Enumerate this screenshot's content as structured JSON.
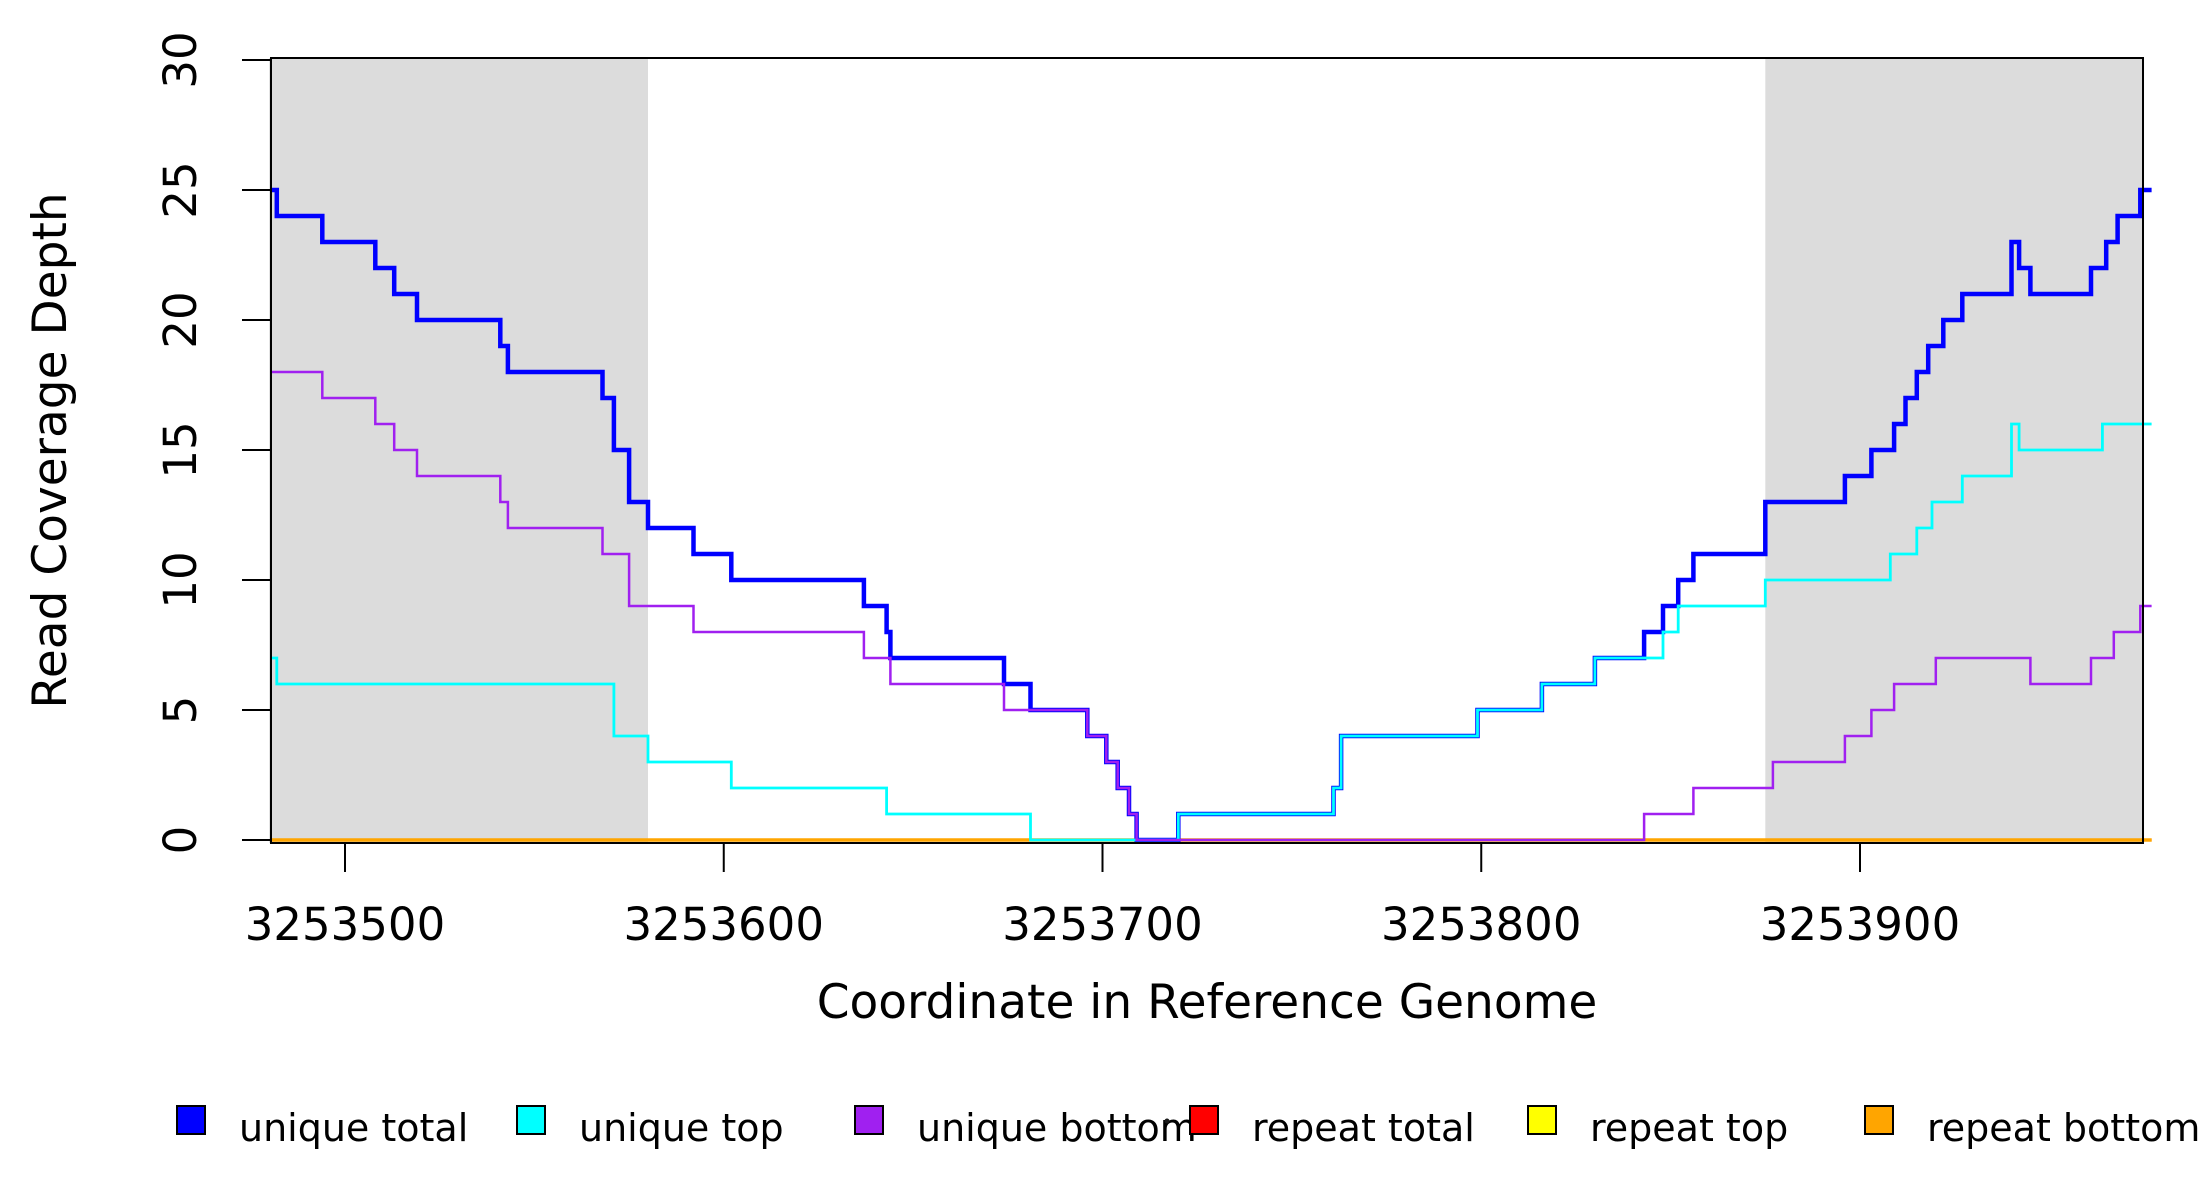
{
  "chart_data": {
    "type": "line",
    "subtype": "step-coverage-plot",
    "title": "",
    "xlabel": "Coordinate in Reference Genome",
    "ylabel": "Read Coverage Depth",
    "xlim": [
      3253480,
      3253977
    ],
    "ylim": [
      0,
      30
    ],
    "x_ticks": [
      3253500,
      3253600,
      3253700,
      3253800,
      3253900
    ],
    "y_ticks": [
      0,
      5,
      10,
      15,
      20,
      25,
      30
    ],
    "grid": "off",
    "background": "#ffffff",
    "shaded_regions": [
      {
        "from": 3253480,
        "to": 3253580,
        "color": "#dcdcdc"
      },
      {
        "from": 3253875,
        "to": 3253975,
        "color": "#dcdcdc"
      }
    ],
    "domain_end": 3253977,
    "draw_order": [
      "repeat total",
      "repeat top",
      "repeat bottom",
      "unique total",
      "unique top",
      "unique bottom"
    ],
    "series": [
      {
        "name": "repeat total",
        "color": "#FF0000",
        "line_width": 3,
        "points": [
          [
            3253480.5,
            0
          ]
        ]
      },
      {
        "name": "repeat top",
        "color": "#FFFF00",
        "line_width": 3,
        "points": [
          [
            3253480.5,
            0
          ]
        ]
      },
      {
        "name": "repeat bottom",
        "color": "#FFA500",
        "line_width": 3.5,
        "points": [
          [
            3253480.5,
            0
          ]
        ]
      },
      {
        "name": "unique total",
        "color": "#0000FF",
        "line_width": 4.5,
        "points": [
          [
            3253480.5,
            25
          ],
          [
            3253482,
            24
          ],
          [
            3253494,
            23
          ],
          [
            3253508,
            22
          ],
          [
            3253513,
            21
          ],
          [
            3253519,
            20
          ],
          [
            3253541,
            19
          ],
          [
            3253543,
            18
          ],
          [
            3253568,
            17
          ],
          [
            3253571,
            15
          ],
          [
            3253575,
            13
          ],
          [
            3253580,
            12
          ],
          [
            3253592,
            11
          ],
          [
            3253602,
            10
          ],
          [
            3253637,
            9
          ],
          [
            3253643,
            8
          ],
          [
            3253644,
            7
          ],
          [
            3253674,
            6
          ],
          [
            3253681,
            5
          ],
          [
            3253696,
            4
          ],
          [
            3253701,
            3
          ],
          [
            3253704,
            2
          ],
          [
            3253707,
            1
          ],
          [
            3253709,
            0
          ],
          [
            3253720,
            1
          ],
          [
            3253761,
            2
          ],
          [
            3253763,
            4
          ],
          [
            3253799,
            5
          ],
          [
            3253816,
            6
          ],
          [
            3253830,
            7
          ],
          [
            3253843,
            8
          ],
          [
            3253848,
            9
          ],
          [
            3253852,
            10
          ],
          [
            3253856,
            11
          ],
          [
            3253875,
            13
          ],
          [
            3253896,
            14
          ],
          [
            3253903,
            15
          ],
          [
            3253909,
            16
          ],
          [
            3253912,
            17
          ],
          [
            3253915,
            18
          ],
          [
            3253918,
            19
          ],
          [
            3253922,
            20
          ],
          [
            3253927,
            21
          ],
          [
            3253940,
            23
          ],
          [
            3253942,
            22
          ],
          [
            3253945,
            21
          ],
          [
            3253961,
            22
          ],
          [
            3253965,
            23
          ],
          [
            3253968,
            24
          ],
          [
            3253974,
            25
          ]
        ]
      },
      {
        "name": "unique top",
        "color": "#00FFFF",
        "line_width": 2.8,
        "points": [
          [
            3253480.5,
            7
          ],
          [
            3253482,
            6
          ],
          [
            3253571,
            4
          ],
          [
            3253580,
            3
          ],
          [
            3253602,
            2
          ],
          [
            3253643,
            1
          ],
          [
            3253681,
            0
          ],
          [
            3253720,
            1
          ],
          [
            3253761,
            2
          ],
          [
            3253763,
            4
          ],
          [
            3253799,
            5
          ],
          [
            3253816,
            6
          ],
          [
            3253830,
            7
          ],
          [
            3253848,
            8
          ],
          [
            3253852,
            9
          ],
          [
            3253875,
            10
          ],
          [
            3253908,
            11
          ],
          [
            3253915,
            12
          ],
          [
            3253919,
            13
          ],
          [
            3253927,
            14
          ],
          [
            3253940,
            16
          ],
          [
            3253942,
            15
          ],
          [
            3253964,
            16
          ]
        ]
      },
      {
        "name": "unique bottom",
        "color": "#A020F0",
        "line_width": 2.5,
        "points": [
          [
            3253480.5,
            18
          ],
          [
            3253494,
            17
          ],
          [
            3253508,
            16
          ],
          [
            3253513,
            15
          ],
          [
            3253519,
            14
          ],
          [
            3253541,
            13
          ],
          [
            3253543,
            12
          ],
          [
            3253568,
            11
          ],
          [
            3253575,
            9
          ],
          [
            3253592,
            8
          ],
          [
            3253637,
            7
          ],
          [
            3253644,
            6
          ],
          [
            3253674,
            5
          ],
          [
            3253696,
            4
          ],
          [
            3253701,
            3
          ],
          [
            3253704,
            2
          ],
          [
            3253707,
            1
          ],
          [
            3253709,
            0
          ],
          [
            3253843,
            1
          ],
          [
            3253856,
            2
          ],
          [
            3253877,
            3
          ],
          [
            3253896,
            4
          ],
          [
            3253903,
            5
          ],
          [
            3253909,
            6
          ],
          [
            3253920,
            7
          ],
          [
            3253945,
            6
          ],
          [
            3253961,
            7
          ],
          [
            3253967,
            8
          ],
          [
            3253974,
            9
          ]
        ]
      }
    ],
    "legend": {
      "position": "bottom",
      "entries": [
        {
          "label": "unique total",
          "color": "#0000FF"
        },
        {
          "label": "unique top",
          "color": "#00FFFF"
        },
        {
          "label": "unique bottom",
          "color": "#A020F0"
        },
        {
          "label": "repeat total",
          "color": "#FF0000"
        },
        {
          "label": "repeat top",
          "color": "#FFFF00"
        },
        {
          "label": "repeat bottom",
          "color": "#FFA500"
        }
      ]
    },
    "stray_dot": {
      "note": "small artifact dot left of repeat-total swatch",
      "color": "#1a1a1a"
    }
  }
}
